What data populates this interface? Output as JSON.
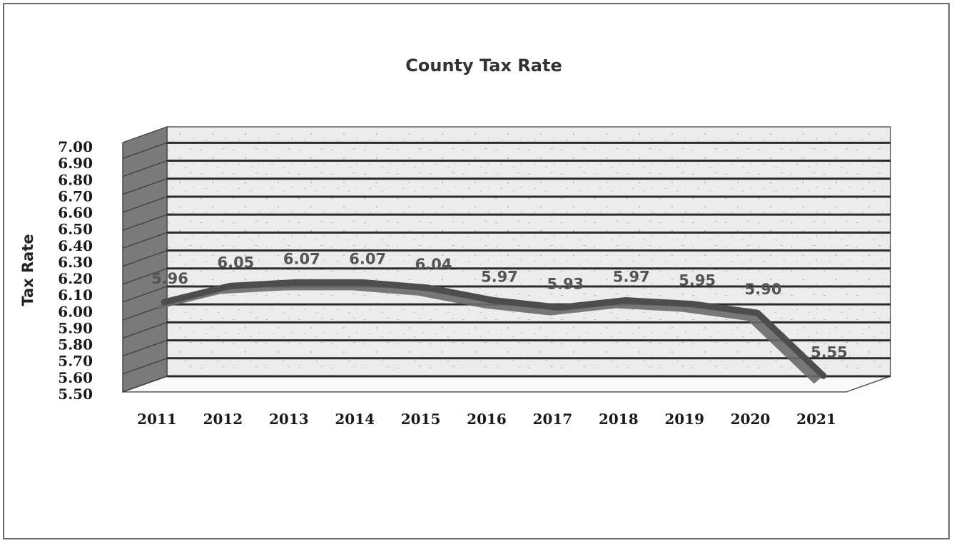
{
  "chart_data": {
    "type": "line",
    "title": "County Tax Rate",
    "xlabel": "",
    "ylabel": "Tax Rate",
    "categories": [
      "2011",
      "2012",
      "2013",
      "2014",
      "2015",
      "2016",
      "2017",
      "2018",
      "2019",
      "2020",
      "2021"
    ],
    "series": [
      {
        "values": [
          5.96,
          6.05,
          6.07,
          6.07,
          6.04,
          5.97,
          5.93,
          5.97,
          5.95,
          5.9,
          5.55
        ],
        "labels": [
          "5.96",
          "6.05",
          "6.07",
          "6.07",
          "6.04",
          "5.97",
          "5.93",
          "5.97",
          "5.95",
          "5.90",
          "5.55"
        ],
        "color": "#4d4d4d"
      }
    ],
    "ylim": [
      5.5,
      7.0
    ],
    "yticks": [
      "7.00",
      "6.90",
      "6.80",
      "6.70",
      "6.60",
      "6.50",
      "6.40",
      "6.30",
      "6.20",
      "6.10",
      "6.00",
      "5.90",
      "5.80",
      "5.70",
      "5.60",
      "5.50"
    ],
    "grid": true,
    "style": "3d-line",
    "legend": "none",
    "colors": {
      "wall": "#ebebeb",
      "side_wall": "#7a7a7a",
      "gridline": "#2b2b2b",
      "line": "#4d4d4d"
    }
  }
}
